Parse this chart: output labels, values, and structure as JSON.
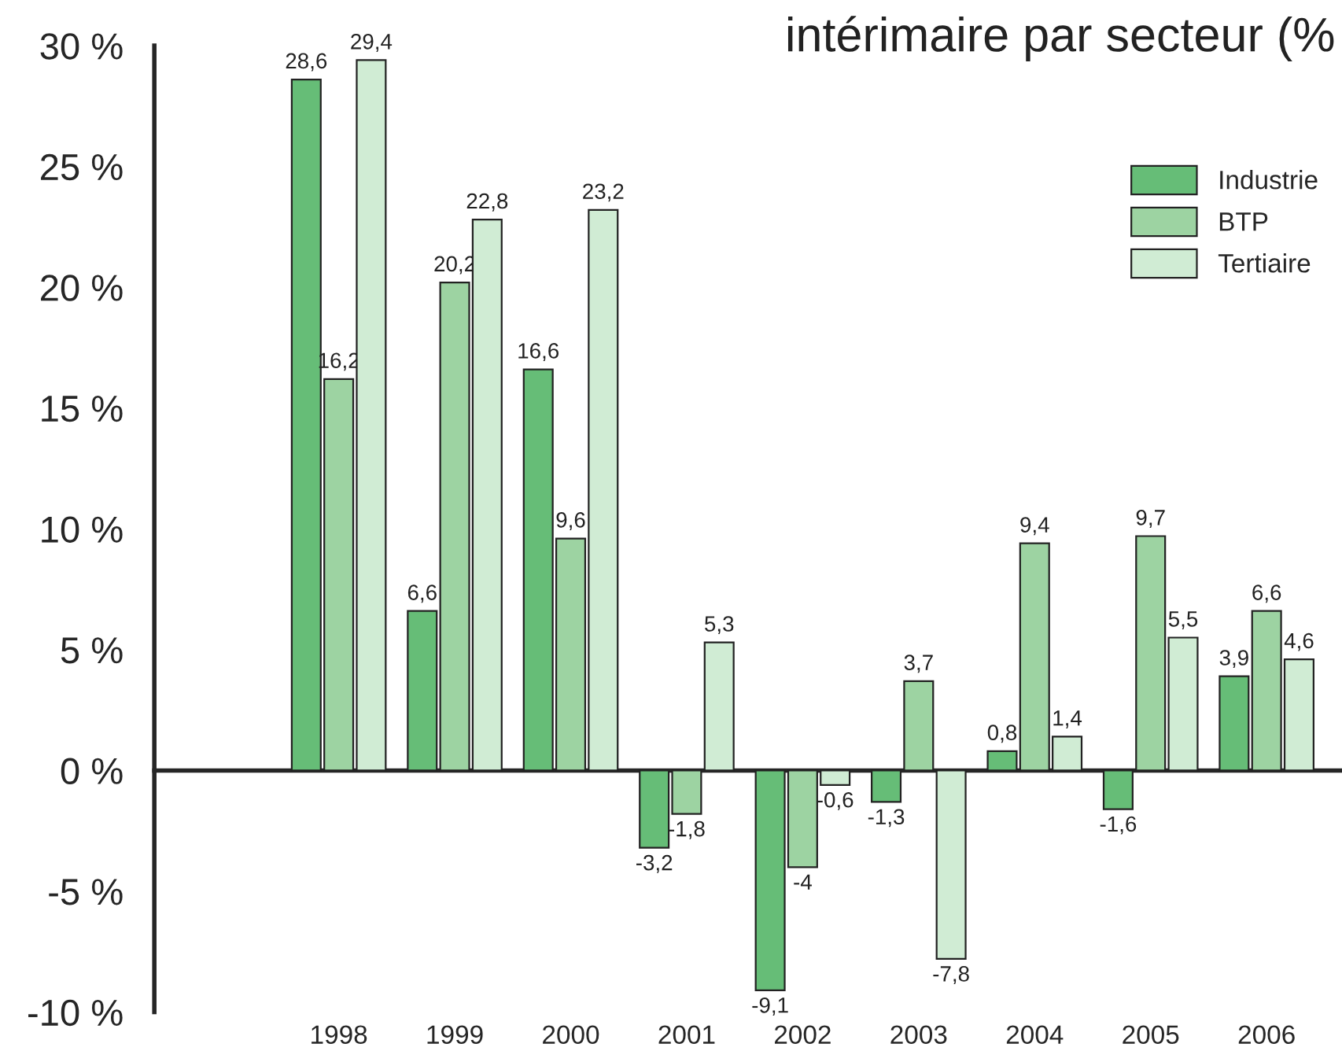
{
  "chart_data": {
    "type": "bar",
    "title": "intérimaire par secteur (%",
    "categories": [
      "1998",
      "1999",
      "2000",
      "2001",
      "2002",
      "2003",
      "2004",
      "2005",
      "2006"
    ],
    "series": [
      {
        "name": "Industrie",
        "color": "#66bd77",
        "values": [
          28.6,
          6.6,
          16.6,
          -3.2,
          -9.1,
          -1.3,
          0.8,
          -1.6,
          3.9
        ],
        "value_labels": [
          "28,6",
          "6,6",
          "16,6",
          "-3,2",
          "-9,1",
          "-1,3",
          "0,8",
          "-1,6",
          "3,9"
        ]
      },
      {
        "name": "BTP",
        "color": "#9dd3a2",
        "values": [
          16.2,
          20.2,
          9.6,
          -1.8,
          -4,
          3.7,
          9.4,
          9.7,
          6.6
        ],
        "value_labels": [
          "16,2",
          "20,2",
          "9,6",
          "-1,8",
          "-4",
          "3,7",
          "9,4",
          "9,7",
          "6,6"
        ]
      },
      {
        "name": "Tertiaire",
        "color": "#d0ecd4",
        "values": [
          29.4,
          22.8,
          23.2,
          5.3,
          -0.6,
          -7.8,
          1.4,
          5.5,
          4.6
        ],
        "value_labels": [
          "29,4",
          "22,8",
          "23,2",
          "5,3",
          "-0,6",
          "-7,8",
          "1,4",
          "5,5",
          "4,6"
        ]
      }
    ],
    "ylim": [
      -10,
      30
    ],
    "yticks": [
      {
        "value": -10,
        "label": "-10 %"
      },
      {
        "value": -5,
        "label": "-5 %"
      },
      {
        "value": 0,
        "label": "0 %"
      },
      {
        "value": 5,
        "label": "5 %"
      },
      {
        "value": 10,
        "label": "10 %"
      },
      {
        "value": 15,
        "label": "15 %"
      },
      {
        "value": 20,
        "label": "20 %"
      },
      {
        "value": 25,
        "label": "25 %"
      },
      {
        "value": 30,
        "label": "30 %"
      }
    ],
    "legend": "top right"
  }
}
